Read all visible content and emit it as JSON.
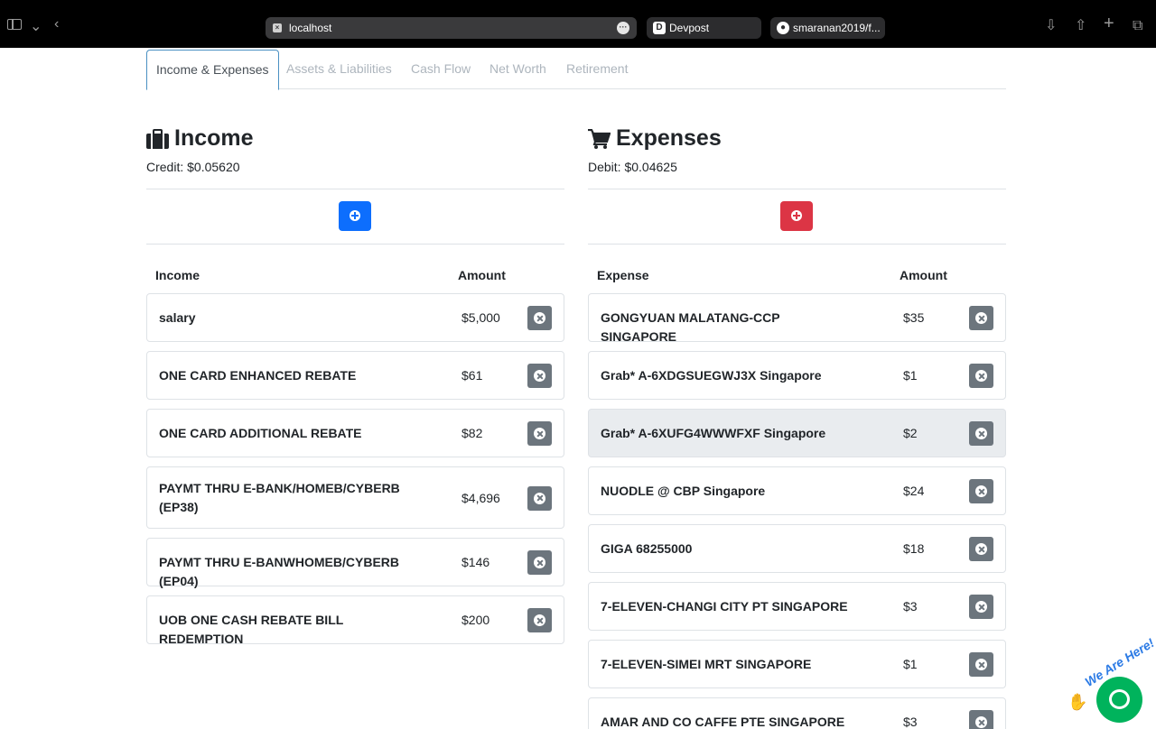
{
  "browser": {
    "url": "localhost",
    "tabs": [
      {
        "label": "Devpost",
        "icon": "devpost-icon"
      },
      {
        "label": "smaranan2019/f...",
        "icon": "github-icon"
      }
    ]
  },
  "nav": {
    "tabs": [
      {
        "label": "Income & Expenses",
        "active": true
      },
      {
        "label": "Assets & Liabilities",
        "active": false
      },
      {
        "label": "Cash Flow",
        "active": false
      },
      {
        "label": "Net Worth",
        "active": false
      },
      {
        "label": "Retirement",
        "active": false
      }
    ]
  },
  "income": {
    "title": "Income",
    "subtitle": "Credit: $0.05620",
    "col_name": "Income",
    "col_amount": "Amount",
    "accent": "#0d6efd",
    "items": [
      {
        "name": "salary",
        "amount": "$5,000"
      },
      {
        "name": "ONE CARD ENHANCED REBATE",
        "amount": "$61"
      },
      {
        "name": "ONE CARD ADDITIONAL REBATE",
        "amount": "$82"
      },
      {
        "name": "PAYMT THRU E-BANK/HOMEB/CYBERB (EP38)",
        "amount": "$4,696"
      },
      {
        "name": "PAYMT THRU E-BANWHOMEB/CYBERB (EP04)",
        "amount": "$146"
      },
      {
        "name": "UOB ONE CASH REBATE BILL REDEMPTION",
        "amount": "$200"
      }
    ]
  },
  "expenses": {
    "title": "Expenses",
    "subtitle": "Debit: $0.04625",
    "col_name": "Expense",
    "col_amount": "Amount",
    "accent": "#dc3545",
    "items": [
      {
        "name": "GONGYUAN MALATANG-CCP SINGAPORE",
        "amount": "$35"
      },
      {
        "name": "Grab* A-6XDGSUEGWJ3X Singapore",
        "amount": "$1"
      },
      {
        "name": "Grab* A-6XUFG4WWWFXF Singapore",
        "amount": "$2",
        "hover": true
      },
      {
        "name": "NUODLE @ CBP Singapore",
        "amount": "$24"
      },
      {
        "name": "GIGA 68255000",
        "amount": "$18"
      },
      {
        "name": "7-ELEVEN-CHANGI CITY PT SINGAPORE",
        "amount": "$3"
      },
      {
        "name": "7-ELEVEN-SIMEI MRT SINGAPORE",
        "amount": "$1"
      },
      {
        "name": "AMAR AND CO CAFFE PTE SINGAPORE",
        "amount": "$3"
      }
    ]
  },
  "chat_widget": {
    "label": "We Are Here!",
    "color": "#00b35c"
  }
}
